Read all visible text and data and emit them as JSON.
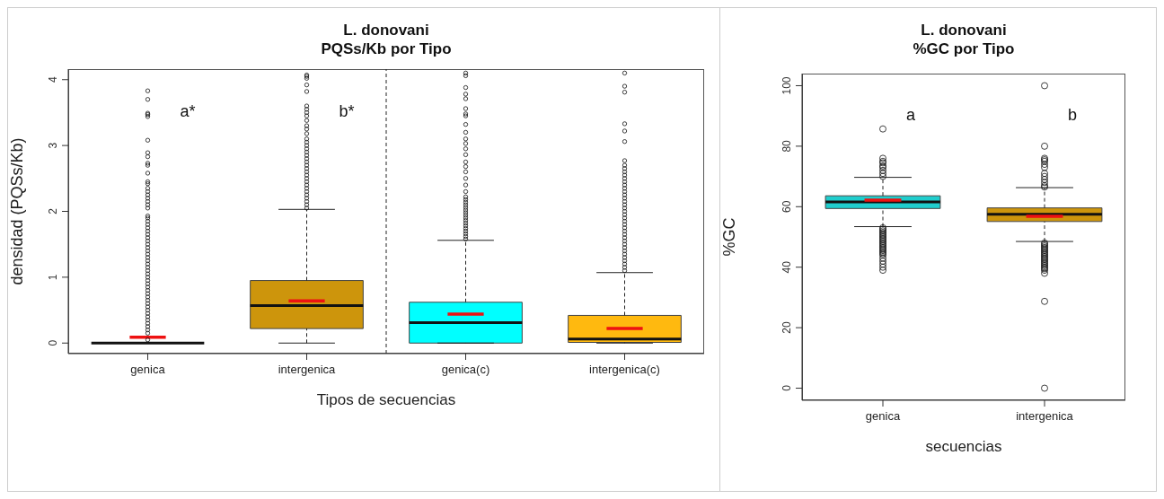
{
  "chart_data": [
    {
      "type": "box",
      "title": "L. donovani",
      "subtitle": "PQSs/Kb por Tipo",
      "xlabel": "Tipos de secuencias",
      "ylabel": "densidad (PQSs/Kb)",
      "categories": [
        "genica",
        "intergenica",
        "genica(c)",
        "intergenica(c)"
      ],
      "colors": [
        null,
        "#cd950c",
        "#00ffff",
        "#ffb90f"
      ],
      "boxes": [
        {
          "low": 0,
          "q1": 0,
          "median": 0,
          "q3": 0,
          "high": 0,
          "mean": 0.09,
          "outliers": [
            0.05,
            0.15,
            0.2,
            0.25,
            0.3,
            0.35,
            0.4,
            0.45,
            0.5,
            0.55,
            0.6,
            0.65,
            0.7,
            0.75,
            0.8,
            0.85,
            0.9,
            0.95,
            1.0,
            1.05,
            1.1,
            1.15,
            1.2,
            1.25,
            1.3,
            1.35,
            1.4,
            1.45,
            1.5,
            1.55,
            1.6,
            1.65,
            1.7,
            1.75,
            1.8,
            1.85,
            1.9,
            1.93,
            2.05,
            2.1,
            2.15,
            2.2,
            2.25,
            2.3,
            2.35,
            2.42,
            2.45,
            2.58,
            2.7,
            2.73,
            2.83,
            2.89,
            3.08,
            3.44,
            3.47,
            3.49,
            3.7,
            3.83
          ]
        },
        {
          "low": 0,
          "q1": 0.22,
          "median": 0.57,
          "q3": 0.95,
          "high": 2.03,
          "mean": 0.64,
          "outliers": [
            2.05,
            2.1,
            2.15,
            2.2,
            2.25,
            2.3,
            2.35,
            2.4,
            2.45,
            2.5,
            2.55,
            2.6,
            2.65,
            2.7,
            2.75,
            2.8,
            2.85,
            2.9,
            2.95,
            3.0,
            3.05,
            3.1,
            3.18,
            3.25,
            3.3,
            3.38,
            3.45,
            3.5,
            3.55,
            3.6,
            3.82,
            3.92,
            4.02,
            4.05,
            4.07
          ]
        },
        {
          "low": 0,
          "q1": 0,
          "median": 0.31,
          "q3": 0.62,
          "high": 1.56,
          "mean": 0.44,
          "outliers": [
            1.58,
            1.62,
            1.66,
            1.7,
            1.74,
            1.78,
            1.82,
            1.86,
            1.9,
            1.94,
            1.98,
            2.02,
            2.06,
            2.1,
            2.14,
            2.18,
            2.22,
            2.3,
            2.4,
            2.5,
            2.6,
            2.68,
            2.75,
            2.86,
            2.95,
            3.03,
            3.1,
            3.2,
            3.32,
            3.45,
            3.48,
            3.56,
            3.71,
            3.78,
            3.88,
            4.06,
            4.1
          ]
        },
        {
          "low": 0,
          "q1": 0.01,
          "median": 0.06,
          "q3": 0.42,
          "high": 1.07,
          "mean": 0.22,
          "outliers": [
            1.1,
            1.15,
            1.2,
            1.25,
            1.3,
            1.35,
            1.4,
            1.45,
            1.5,
            1.55,
            1.6,
            1.65,
            1.7,
            1.75,
            1.8,
            1.85,
            1.9,
            1.95,
            2.0,
            2.05,
            2.1,
            2.15,
            2.2,
            2.25,
            2.3,
            2.35,
            2.4,
            2.45,
            2.5,
            2.55,
            2.6,
            2.65,
            2.7,
            2.77,
            3.06,
            3.22,
            3.33,
            3.81,
            3.9,
            4.1
          ]
        }
      ],
      "ylim": [
        -0.16,
        4.16
      ],
      "yticks": [
        0,
        1,
        2,
        3,
        4
      ],
      "annotations": [
        "a*",
        "b*"
      ]
    },
    {
      "type": "box",
      "title": "L. donovani",
      "subtitle": "%GC por Tipo",
      "xlabel": "secuencias",
      "ylabel": "%GC",
      "categories": [
        "genica",
        "intergenica"
      ],
      "colors": [
        "#1fcdcd",
        "#cd950c"
      ],
      "boxes": [
        {
          "low": 53.4,
          "q1": 59.4,
          "median": 61.6,
          "q3": 63.6,
          "high": 69.7,
          "mean": 62.2,
          "outliers": [
            85.7,
            76,
            75,
            74.5,
            73.5,
            73,
            72,
            71,
            70,
            53,
            52.5,
            52,
            51.5,
            51,
            50.5,
            50,
            49.5,
            49,
            48.5,
            48,
            47.5,
            47,
            46.5,
            46,
            45.5,
            45,
            44.5,
            44,
            43,
            42,
            41,
            40,
            39
          ]
        },
        {
          "low": 48.5,
          "q1": 55.1,
          "median": 57.5,
          "q3": 59.6,
          "high": 66.3,
          "mean": 56.8,
          "outliers": [
            100,
            80,
            76,
            75.5,
            75,
            74,
            73,
            71,
            70,
            69,
            68,
            67,
            66.5,
            48,
            47.5,
            47,
            46.5,
            46,
            45.5,
            45,
            44.5,
            44,
            43.5,
            43,
            42.5,
            42,
            41.5,
            41,
            40.5,
            40,
            39.5,
            39,
            38,
            28.7,
            0
          ]
        }
      ],
      "ylim": [
        -4,
        104
      ],
      "yticks": [
        0,
        20,
        40,
        60,
        80,
        100
      ],
      "annotations": [
        "a",
        "b"
      ]
    }
  ]
}
